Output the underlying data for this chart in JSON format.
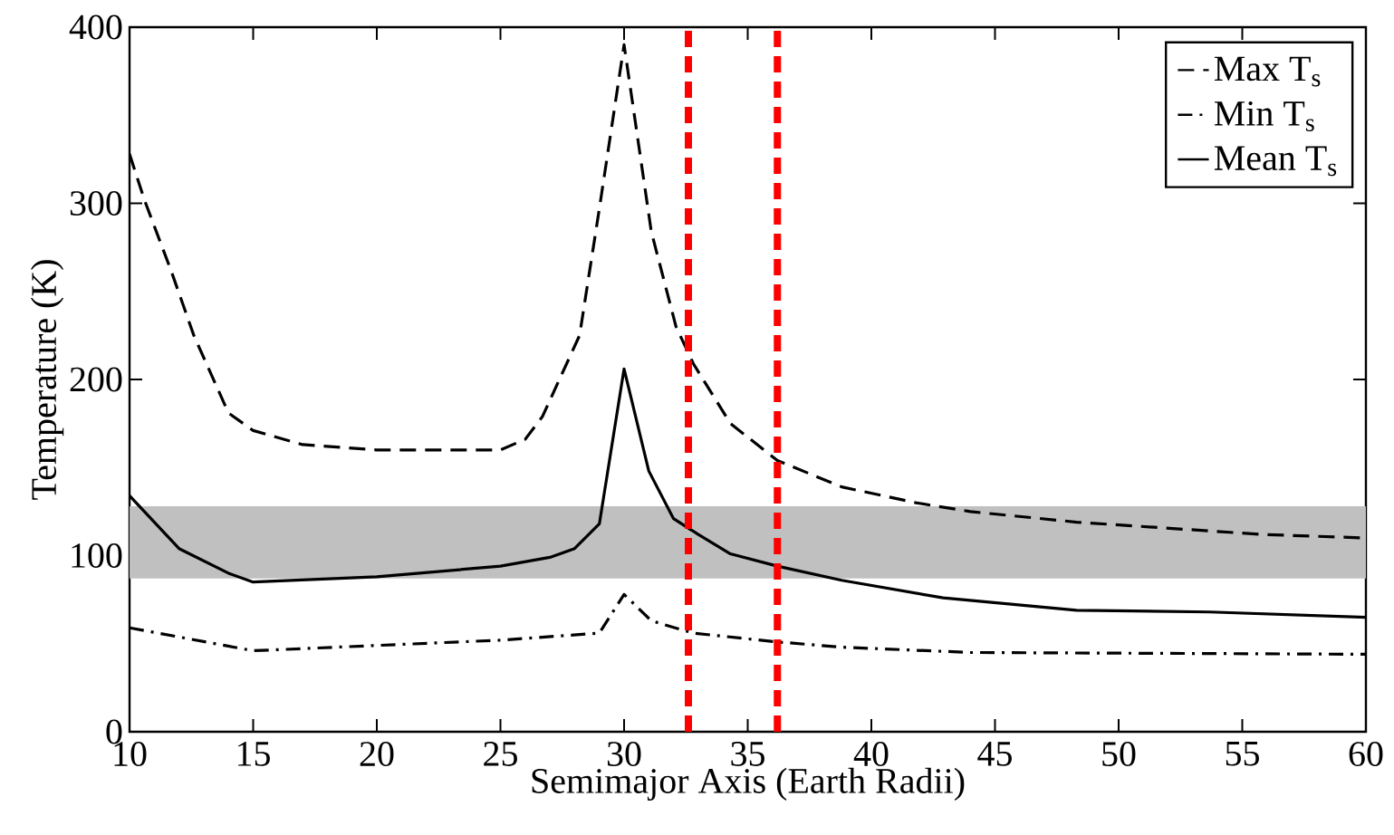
{
  "chart_data": {
    "type": "line",
    "xlabel": "Semimajor Axis (Earth Radii)",
    "ylabel": "Temperature (K)",
    "xlim": [
      10,
      60
    ],
    "ylim": [
      0,
      400
    ],
    "xticks": [
      10,
      15,
      20,
      25,
      30,
      35,
      40,
      45,
      50,
      55,
      60
    ],
    "yticks": [
      0,
      100,
      200,
      300,
      400
    ],
    "grid": false,
    "legend": "top right",
    "marker": "none",
    "series": [
      {
        "name": "Max T$_{s}$",
        "color": "#000000",
        "line_style": "dashed",
        "x": [
          10,
          10.6,
          11.7,
          12.6,
          14,
          15,
          17,
          20,
          25,
          26,
          26.7,
          28.2,
          29,
          30,
          31.1,
          32.1,
          32.8,
          34.3,
          36.2,
          38.8,
          41.8,
          44,
          48.3,
          52.6,
          55.8,
          60
        ],
        "values": [
          328,
          302,
          261,
          225,
          181,
          171,
          163,
          160,
          160,
          166,
          179,
          225,
          297,
          390,
          284,
          230,
          209,
          175,
          154,
          139,
          130,
          125,
          119,
          115,
          112,
          110
        ]
      },
      {
        "name": "Min T$_{s}$",
        "color": "#000000",
        "line_style": "dashdot",
        "x": [
          10,
          15,
          20,
          25,
          29,
          30,
          31.1,
          32.8,
          36.2,
          38.8,
          44,
          60
        ],
        "values": [
          59,
          46,
          49,
          52,
          56,
          78,
          63,
          56,
          51,
          48,
          45,
          44
        ]
      },
      {
        "name": "Mean T$_{s}$",
        "color": "#000000",
        "line_style": "solid",
        "x": [
          10,
          12,
          14,
          15,
          20,
          25,
          27,
          28,
          29,
          30,
          31,
          32,
          33,
          34.3,
          36.2,
          38.8,
          42.9,
          48.3,
          53.7,
          60
        ],
        "values": [
          134,
          104,
          90,
          85,
          88,
          94,
          99,
          104,
          118,
          206,
          148,
          121,
          112,
          101,
          94,
          86,
          76,
          69,
          68,
          65
        ]
      }
    ],
    "bands": [
      {
        "axis": "y",
        "from": 87,
        "to": 128,
        "color": "#c0c0c0"
      }
    ],
    "ref_lines": [
      {
        "axis": "x",
        "value": 32.6,
        "color": "#ff0000",
        "line_style": "dashed"
      },
      {
        "axis": "x",
        "value": 36.2,
        "color": "#ff0000",
        "line_style": "dashed"
      }
    ]
  }
}
